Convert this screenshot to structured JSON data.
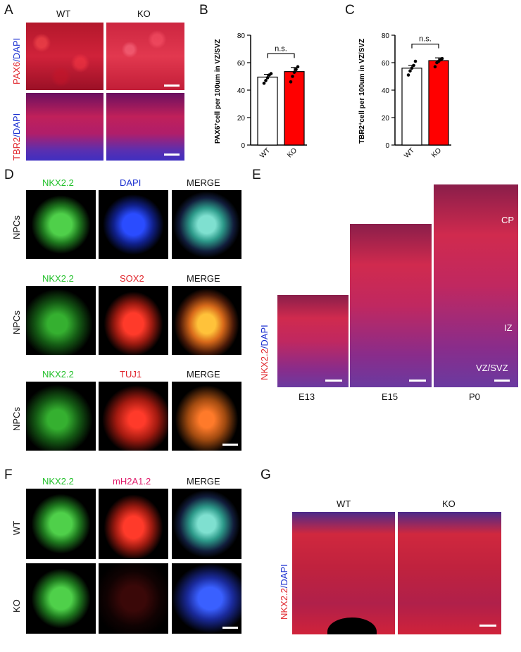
{
  "panels": {
    "A": {
      "letter": "A",
      "col_wt": "WT",
      "col_ko": "KO",
      "row1_label_red": "PAX6",
      "row1_label_blue": "/DAPI",
      "row2_label_red": "TBR2",
      "row2_label_blue": "/DAPI"
    },
    "B": {
      "letter": "B"
    },
    "C": {
      "letter": "C"
    },
    "D": {
      "letter": "D",
      "rows": [
        {
          "row_label": "NPCs",
          "ch1": "NKX2.2",
          "ch2": "DAPI",
          "ch3": "MERGE"
        },
        {
          "row_label": "NPCs",
          "ch1": "NKX2.2",
          "ch2": "SOX2",
          "ch3": "MERGE"
        },
        {
          "row_label": "NPCs",
          "ch1": "NKX2.2",
          "ch2": "TUJ1",
          "ch3": "MERGE"
        }
      ]
    },
    "E": {
      "letter": "E",
      "side_label_red": "NKX2.2",
      "side_label_blue": "/DAPI",
      "stages": [
        "E13",
        "E15",
        "P0"
      ],
      "regions": [
        "CP",
        "IZ",
        "VZ/SVZ"
      ]
    },
    "F": {
      "letter": "F",
      "ch1": "NKX2.2",
      "ch2": "mH2A1.2",
      "ch3": "MERGE",
      "row_wt": "WT",
      "row_ko": "KO"
    },
    "G": {
      "letter": "G",
      "col_wt": "WT",
      "col_ko": "KO",
      "side_label_red": "NKX2.2",
      "side_label_blue": "/DAPI"
    }
  },
  "chart_data": [
    {
      "type": "bar",
      "panel": "B",
      "categories": [
        "WT",
        "KO"
      ],
      "values": [
        49.5,
        53.5
      ],
      "errors": [
        2,
        3
      ],
      "points": [
        [
          45,
          47,
          49,
          51,
          52
        ],
        [
          46,
          50,
          53,
          55,
          57
        ]
      ],
      "bar_colors": [
        "#ffffff",
        "#ff0000"
      ],
      "ylabel_main": "PAX6",
      "ylabel_sup": "+",
      "ylabel_rest": "cell per 100um in VZ/SVZ",
      "yticks": [
        0,
        20,
        40,
        60,
        80
      ],
      "ylim": [
        0,
        80
      ],
      "annotation": "n.s."
    },
    {
      "type": "bar",
      "panel": "C",
      "categories": [
        "WT",
        "KO"
      ],
      "values": [
        56,
        61.5
      ],
      "errors": [
        2,
        2
      ],
      "points": [
        [
          51,
          54,
          56,
          58,
          61
        ],
        [
          57,
          60,
          61,
          62,
          63
        ]
      ],
      "bar_colors": [
        "#ffffff",
        "#ff0000"
      ],
      "ylabel_main": "TBR2",
      "ylabel_sup": "+",
      "ylabel_rest": "cell per 100um in VZ/SVZ",
      "yticks": [
        0,
        20,
        40,
        60,
        80
      ],
      "ylim": [
        0,
        80
      ],
      "annotation": "n.s."
    }
  ]
}
